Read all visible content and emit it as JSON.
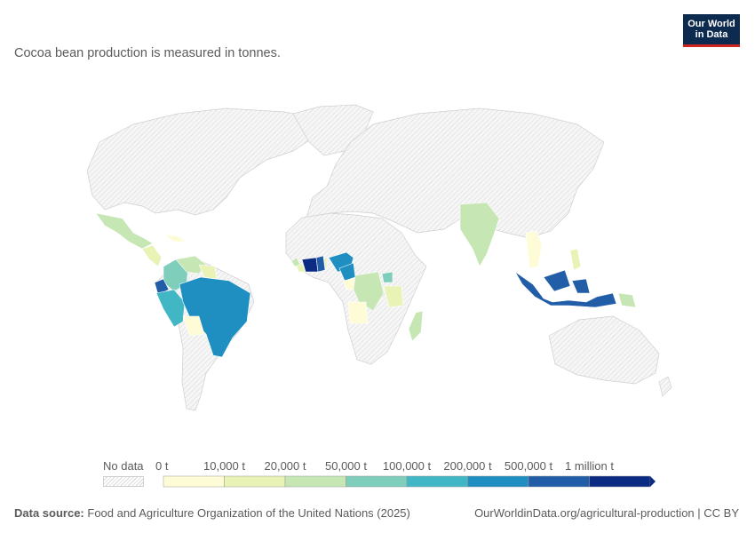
{
  "subtitle": "Cocoa bean production is measured in tonnes.",
  "logo": {
    "line1": "Our World",
    "line2": "in Data"
  },
  "legend": {
    "no_data_label": "No data",
    "bins": [
      "0 t",
      "10,000 t",
      "20,000 t",
      "50,000 t",
      "100,000 t",
      "200,000 t",
      "500,000 t",
      "1 million t"
    ],
    "colors": [
      "#fdfcd6",
      "#e8f3b5",
      "#c6e6b4",
      "#7fcdbb",
      "#41b6c4",
      "#1e8fc0",
      "#225ea8",
      "#0c2c84"
    ]
  },
  "map_colors": {
    "land_no_data": "#f2f2f2",
    "border": "#c9c9c9"
  },
  "regions": [
    {
      "name": "Mexico",
      "bin": 2
    },
    {
      "name": "Central America",
      "bin": 1
    },
    {
      "name": "Caribbean",
      "bin": 0
    },
    {
      "name": "Colombia",
      "bin": 3
    },
    {
      "name": "Venezuela",
      "bin": 2
    },
    {
      "name": "Guyanas",
      "bin": 1
    },
    {
      "name": "Ecuador",
      "bin": 6
    },
    {
      "name": "Peru",
      "bin": 4
    },
    {
      "name": "Brazil",
      "bin": 5
    },
    {
      "name": "Bolivia",
      "bin": 0
    },
    {
      "name": "Sierra Leone",
      "bin": 2
    },
    {
      "name": "Liberia",
      "bin": 1
    },
    {
      "name": "Cote d'Ivoire",
      "bin": 7
    },
    {
      "name": "Ghana",
      "bin": 6
    },
    {
      "name": "Togo",
      "bin": 1
    },
    {
      "name": "Nigeria",
      "bin": 5
    },
    {
      "name": "Cameroon",
      "bin": 5
    },
    {
      "name": "Gabon",
      "bin": 0
    },
    {
      "name": "DR Congo",
      "bin": 2
    },
    {
      "name": "Uganda",
      "bin": 3
    },
    {
      "name": "Tanzania",
      "bin": 1
    },
    {
      "name": "Angola",
      "bin": 0
    },
    {
      "name": "Madagascar",
      "bin": 2
    },
    {
      "name": "India",
      "bin": 2
    },
    {
      "name": "Vietnam",
      "bin": 0
    },
    {
      "name": "Philippines",
      "bin": 1
    },
    {
      "name": "Indonesia",
      "bin": 6
    },
    {
      "name": "Papua New Guinea",
      "bin": 2
    }
  ],
  "footer": {
    "source_label": "Data source:",
    "source_text": "Food and Agriculture Organization of the United Nations (2025)",
    "url_text": "OurWorldinData.org/agricultural-production | CC BY"
  }
}
